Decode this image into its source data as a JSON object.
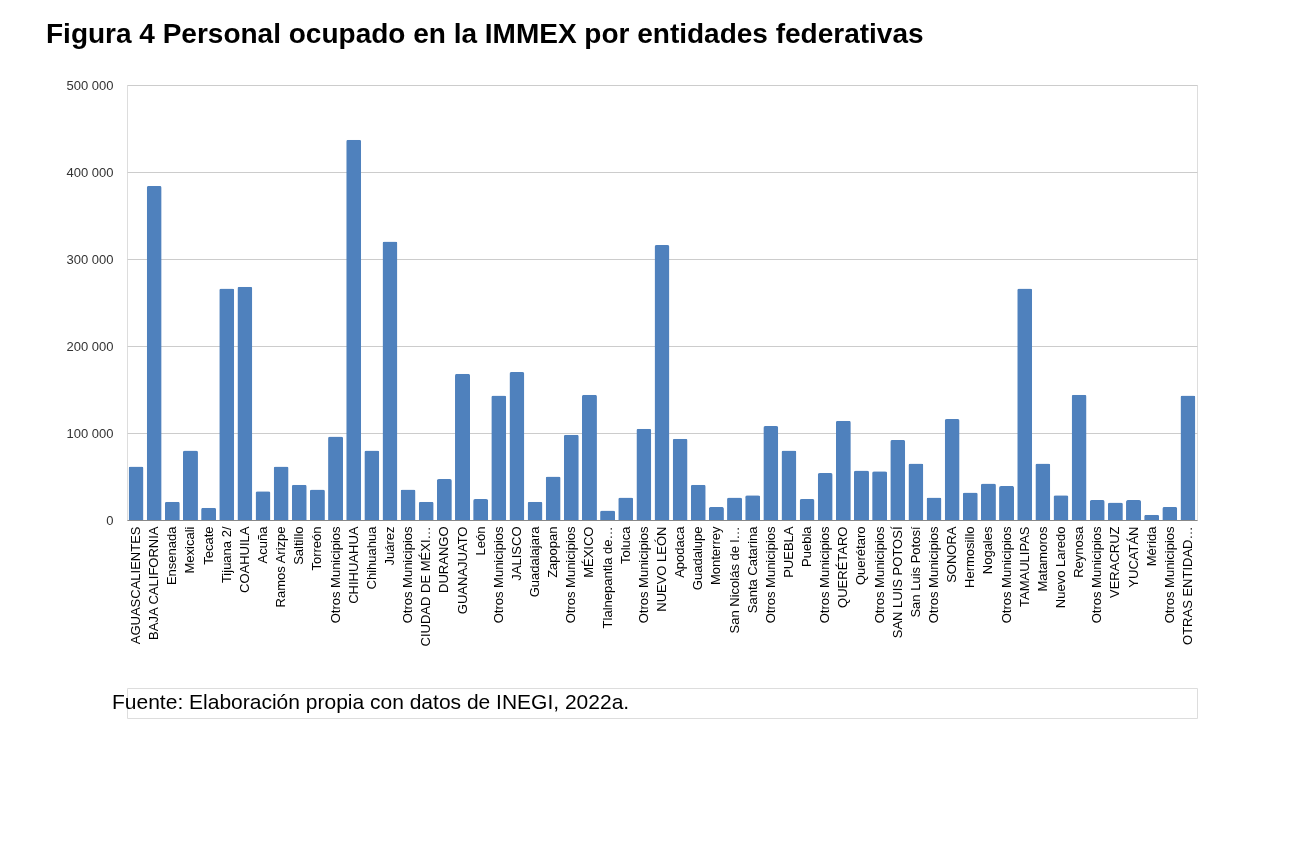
{
  "chart_data": {
    "type": "bar",
    "title": "Figura 4 Personal ocupado en la IMMEX por entidades federativas",
    "categories": [
      "AGUASCALIENTES",
      "BAJA CALIFORNIA",
      "Ensenada",
      "Mexicali",
      "Tecate",
      "Tijuana 2/",
      "COAHUILA",
      "Acuña",
      "Ramos Arizpe",
      "Saltillo",
      "Torreón",
      "Otros Municipios",
      "CHIHUAHUA",
      "Chihuahua",
      "Juárez",
      "Otros Municipios",
      "CIUDAD DE MÉXI…",
      "DURANGO",
      "GUANAJUATO",
      "León",
      "Otros Municipios",
      "JALISCO",
      "Guadalajara",
      "Zapopan",
      "Otros Municipios",
      "MÉXICO",
      "Tlalnepantla de…",
      "Toluca",
      "Otros Municipios",
      "NUEVO LEÓN",
      "Apodaca",
      "Guadalupe",
      "Monterrey",
      "San Nicolás de l…",
      "Santa Catarina",
      "Otros Municipios",
      "PUEBLA",
      "Puebla",
      "Otros Municipios",
      "QUERÉTARO",
      "Querétaro",
      "Otros Municipios",
      "SAN LUIS POTOSÍ",
      "San Luis Potosí",
      "Otros Municipios",
      "SONORA",
      "Hermosillo",
      "Nogales",
      "Otros Municipios",
      "TAMAULIPAS",
      "Matamoros",
      "Nuevo Laredo",
      "Reynosa",
      "Otros Municipios",
      "VERACRUZ",
      "YUCATÁN",
      "Mérida",
      "Otros Municipios",
      "OTRAS ENTIDAD…"
    ],
    "values": [
      61500,
      384000,
      21000,
      80000,
      14000,
      266000,
      268000,
      33000,
      61500,
      40500,
      35000,
      96000,
      437000,
      80000,
      320000,
      35000,
      21000,
      47000,
      168000,
      24000,
      143000,
      170000,
      21000,
      50000,
      98000,
      144000,
      11000,
      26000,
      105000,
      316000,
      93500,
      40500,
      15000,
      26000,
      28500,
      108000,
      80000,
      24000,
      54000,
      114000,
      57000,
      56000,
      92000,
      65000,
      26000,
      116000,
      31500,
      42000,
      39000,
      266000,
      65000,
      28500,
      144000,
      23000,
      20000,
      23000,
      6000,
      15000,
      143000
    ],
    "color": "#4f81bd",
    "ylim": [
      0,
      500000
    ],
    "yticks": [
      {
        "value": 0,
        "label": "0"
      },
      {
        "value": 100000,
        "label": "100 000"
      },
      {
        "value": 200000,
        "label": "200 000"
      },
      {
        "value": 300000,
        "label": "300 000"
      },
      {
        "value": 400000,
        "label": "400 000"
      },
      {
        "value": 500000,
        "label": "500 000"
      }
    ],
    "grid": "y",
    "annotations": [
      "Fuente: Elaboración propia con datos de INEGI, 2022a."
    ]
  }
}
